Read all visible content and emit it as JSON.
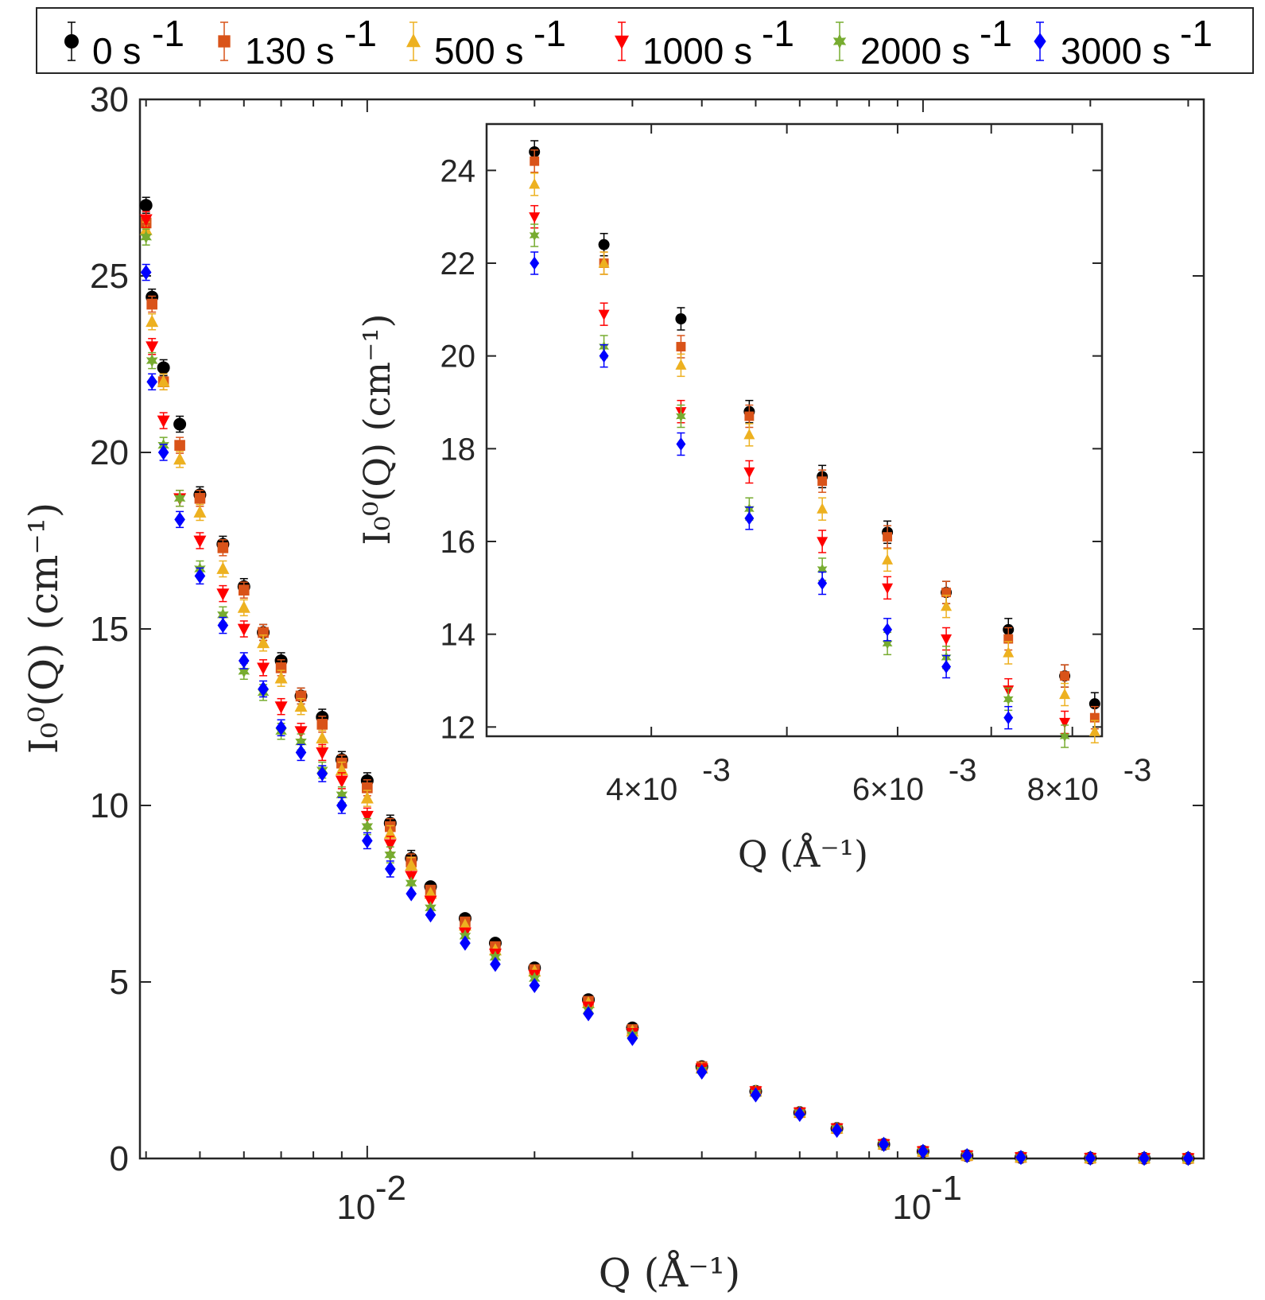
{
  "chart_data": [
    {
      "type": "scatter",
      "name": "main",
      "xscale": "log",
      "xlim": [
        0.0039,
        0.32
      ],
      "ylim": [
        0,
        30
      ],
      "xlabel": "Q (Å⁻¹)",
      "ylabel": "I₀⁰(Q) (cm⁻¹)",
      "xtick_labels": [
        {
          "value": 0.01,
          "base": "10",
          "exp": "-2"
        },
        {
          "value": 0.1,
          "base": "10",
          "exp": "-1"
        }
      ],
      "yticks": [
        0,
        5,
        10,
        15,
        20,
        25,
        30
      ],
      "grid": false,
      "legend_position": "top",
      "series": [
        {
          "name": "0 s⁻¹",
          "label": "0 s",
          "sup": "-1",
          "color": "#000000",
          "marker": "circle",
          "x": [
            0.004,
            0.0041,
            0.0043,
            0.0046,
            0.005,
            0.0055,
            0.006,
            0.0065,
            0.007,
            0.0076,
            0.0083,
            0.009,
            0.01,
            0.011,
            0.012,
            0.013,
            0.015,
            0.017,
            0.02,
            0.025,
            0.03,
            0.04,
            0.05,
            0.06,
            0.07,
            0.085,
            0.1,
            0.12,
            0.15,
            0.2,
            0.25,
            0.3
          ],
          "y": [
            27.0,
            24.4,
            22.4,
            20.8,
            18.8,
            17.4,
            16.2,
            14.9,
            14.1,
            13.1,
            12.5,
            11.3,
            10.7,
            9.5,
            8.5,
            7.7,
            6.8,
            6.1,
            5.4,
            4.5,
            3.7,
            2.6,
            1.9,
            1.3,
            0.85,
            0.4,
            0.2,
            0.08,
            0.03,
            0.01,
            0.005,
            0.003
          ]
        },
        {
          "name": "130 s⁻¹",
          "label": "130 s",
          "sup": "-1",
          "color": "#D95319",
          "marker": "square",
          "x": [
            0.004,
            0.0041,
            0.0043,
            0.0046,
            0.005,
            0.0055,
            0.006,
            0.0065,
            0.007,
            0.0076,
            0.0083,
            0.009,
            0.01,
            0.011,
            0.012,
            0.013,
            0.015,
            0.017,
            0.02,
            0.025,
            0.03,
            0.04,
            0.05,
            0.06,
            0.07,
            0.085,
            0.1,
            0.12,
            0.15,
            0.2,
            0.25,
            0.3
          ],
          "y": [
            26.5,
            24.2,
            22.0,
            20.2,
            18.7,
            17.3,
            16.1,
            14.9,
            13.9,
            13.1,
            12.3,
            11.2,
            10.5,
            9.4,
            8.4,
            7.6,
            6.7,
            6.0,
            5.35,
            4.45,
            3.65,
            2.6,
            1.9,
            1.3,
            0.85,
            0.4,
            0.2,
            0.08,
            0.03,
            0.01,
            0.005,
            0.003
          ]
        },
        {
          "name": "500 s⁻¹",
          "label": "500 s",
          "sup": "-1",
          "color": "#EDB120",
          "marker": "triangle-up",
          "x": [
            0.004,
            0.0041,
            0.0043,
            0.0046,
            0.005,
            0.0055,
            0.006,
            0.0065,
            0.007,
            0.0076,
            0.0083,
            0.009,
            0.01,
            0.011,
            0.012,
            0.013,
            0.015,
            0.017,
            0.02,
            0.025,
            0.03,
            0.04,
            0.05,
            0.06,
            0.07,
            0.085,
            0.1,
            0.12,
            0.15,
            0.2,
            0.25,
            0.3
          ],
          "y": [
            26.3,
            23.7,
            22.0,
            19.8,
            18.3,
            16.7,
            15.6,
            14.6,
            13.6,
            12.8,
            11.9,
            11.0,
            10.2,
            9.2,
            8.3,
            7.5,
            6.6,
            5.9,
            5.3,
            4.4,
            3.6,
            2.55,
            1.9,
            1.3,
            0.85,
            0.4,
            0.2,
            0.08,
            0.03,
            0.01,
            0.005,
            0.003
          ]
        },
        {
          "name": "1000 s⁻¹",
          "label": "1000 s",
          "sup": "-1",
          "color": "#FF0000",
          "marker": "triangle-down",
          "x": [
            0.004,
            0.0041,
            0.0043,
            0.0046,
            0.005,
            0.0055,
            0.006,
            0.0065,
            0.007,
            0.0076,
            0.0083,
            0.009,
            0.01,
            0.011,
            0.012,
            0.013,
            0.015,
            0.017,
            0.02,
            0.025,
            0.03,
            0.04,
            0.05,
            0.06,
            0.07,
            0.085,
            0.1,
            0.12,
            0.15,
            0.2,
            0.25,
            0.3
          ],
          "y": [
            26.6,
            23.0,
            20.9,
            18.7,
            17.5,
            16.0,
            15.0,
            13.9,
            12.8,
            12.1,
            11.5,
            10.7,
            9.7,
            8.9,
            8.0,
            7.3,
            6.4,
            5.8,
            5.2,
            4.3,
            3.55,
            2.55,
            1.9,
            1.3,
            0.85,
            0.4,
            0.2,
            0.08,
            0.03,
            0.01,
            0.005,
            0.003
          ]
        },
        {
          "name": "2000 s⁻¹",
          "label": "2000 s",
          "sup": "-1",
          "color": "#77AC30",
          "marker": "hexagram",
          "x": [
            0.004,
            0.0041,
            0.0043,
            0.0046,
            0.005,
            0.0055,
            0.006,
            0.0065,
            0.007,
            0.0076,
            0.0083,
            0.009,
            0.01,
            0.011,
            0.012,
            0.013,
            0.015,
            0.017,
            0.02,
            0.025,
            0.03,
            0.04,
            0.05,
            0.06,
            0.07,
            0.085,
            0.1,
            0.12,
            0.15,
            0.2,
            0.25,
            0.3
          ],
          "y": [
            26.1,
            22.6,
            20.2,
            18.7,
            16.7,
            15.4,
            13.8,
            13.2,
            12.1,
            11.8,
            11.0,
            10.3,
            9.4,
            8.6,
            7.8,
            7.1,
            6.3,
            5.7,
            5.1,
            4.2,
            3.5,
            2.5,
            1.85,
            1.3,
            0.85,
            0.4,
            0.2,
            0.08,
            0.03,
            0.01,
            0.005,
            0.003
          ]
        },
        {
          "name": "3000 s⁻¹",
          "label": "3000 s",
          "sup": "-1",
          "color": "#0000FF",
          "marker": "diamond",
          "x": [
            0.004,
            0.0041,
            0.0043,
            0.0046,
            0.005,
            0.0055,
            0.006,
            0.0065,
            0.007,
            0.0076,
            0.0083,
            0.009,
            0.01,
            0.011,
            0.012,
            0.013,
            0.015,
            0.017,
            0.02,
            0.025,
            0.03,
            0.04,
            0.05,
            0.06,
            0.07,
            0.085,
            0.1,
            0.12,
            0.15,
            0.2,
            0.25,
            0.3
          ],
          "y": [
            25.1,
            22.0,
            20.0,
            18.1,
            16.5,
            15.1,
            14.1,
            13.3,
            12.2,
            11.5,
            10.9,
            10.0,
            9.0,
            8.2,
            7.5,
            6.9,
            6.1,
            5.5,
            4.9,
            4.1,
            3.4,
            2.45,
            1.8,
            1.25,
            0.8,
            0.4,
            0.2,
            0.08,
            0.03,
            0.01,
            0.005,
            0.003
          ]
        }
      ]
    },
    {
      "type": "scatter",
      "name": "inset",
      "xscale": "log",
      "xlim": [
        0.00305,
        0.0084
      ],
      "ylim": [
        11.8,
        25.0
      ],
      "xlabel": "Q (Å⁻¹)",
      "ylabel": "I₀⁰(Q) (cm⁻¹)",
      "xtick_labels": [
        {
          "value": 0.004,
          "text": "4×10",
          "exp": "-3"
        },
        {
          "value": 0.006,
          "text": "6×10",
          "exp": "-3"
        },
        {
          "value": 0.008,
          "text": "8×10",
          "exp": "-3"
        }
      ],
      "yticks": [
        12,
        14,
        16,
        18,
        20,
        22,
        24
      ],
      "grid": false,
      "series": [
        {
          "name": "0 s⁻¹",
          "color": "#000000",
          "marker": "circle",
          "x": [
            0.0033,
            0.0037,
            0.0042,
            0.0047,
            0.0053,
            0.0059,
            0.0065,
            0.0072,
            0.0079,
            0.0083
          ],
          "y": [
            24.4,
            22.4,
            20.8,
            18.8,
            17.4,
            16.2,
            14.9,
            14.1,
            13.1,
            12.5
          ]
        },
        {
          "name": "130 s⁻¹",
          "color": "#D95319",
          "marker": "square",
          "x": [
            0.0033,
            0.0037,
            0.0042,
            0.0047,
            0.0053,
            0.0059,
            0.0065,
            0.0072,
            0.0079,
            0.0083
          ],
          "y": [
            24.2,
            22.0,
            20.2,
            18.7,
            17.3,
            16.1,
            14.9,
            13.9,
            13.1,
            12.2
          ]
        },
        {
          "name": "500 s⁻¹",
          "color": "#EDB120",
          "marker": "triangle-up",
          "x": [
            0.0033,
            0.0037,
            0.0042,
            0.0047,
            0.0053,
            0.0059,
            0.0065,
            0.0072,
            0.0079,
            0.0083
          ],
          "y": [
            23.7,
            22.0,
            19.8,
            18.3,
            16.7,
            15.6,
            14.6,
            13.6,
            12.7,
            11.9
          ]
        },
        {
          "name": "1000 s⁻¹",
          "color": "#FF0000",
          "marker": "triangle-down",
          "x": [
            0.0033,
            0.0037,
            0.0042,
            0.0047,
            0.0053,
            0.0059,
            0.0065,
            0.0072,
            0.0079
          ],
          "y": [
            23.0,
            20.9,
            18.8,
            17.5,
            16.0,
            15.0,
            13.9,
            12.8,
            12.1
          ]
        },
        {
          "name": "2000 s⁻¹",
          "color": "#77AC30",
          "marker": "hexagram",
          "x": [
            0.0033,
            0.0037,
            0.0042,
            0.0047,
            0.0053,
            0.0059,
            0.0065,
            0.0072,
            0.0079
          ],
          "y": [
            22.6,
            20.2,
            18.7,
            16.7,
            15.4,
            13.8,
            13.5,
            12.6,
            11.8
          ]
        },
        {
          "name": "3000 s⁻¹",
          "color": "#0000FF",
          "marker": "diamond",
          "x": [
            0.0033,
            0.0037,
            0.0042,
            0.0047,
            0.0053,
            0.0059,
            0.0065,
            0.0072
          ],
          "y": [
            22.0,
            20.0,
            18.1,
            16.5,
            15.1,
            14.1,
            13.3,
            12.2
          ]
        }
      ]
    }
  ]
}
